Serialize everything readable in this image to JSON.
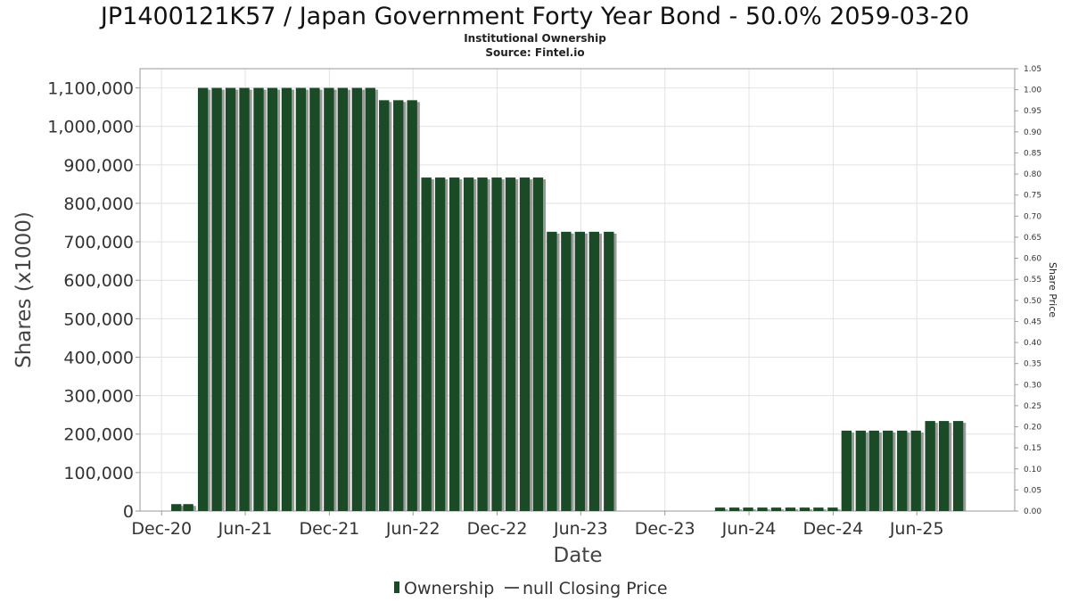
{
  "chart_data": {
    "type": "bar",
    "title": "JP1400121K57 / Japan Government Forty Year Bond - 50.0% 2059-03-20",
    "subtitle": "Institutional Ownership",
    "source": "Source: Fintel.io",
    "xlabel": "Date",
    "ylabel": "Shares (x1000)",
    "y2label": "Share Price",
    "ylim": [
      0,
      1150000
    ],
    "y2lim": [
      0,
      1.05
    ],
    "grid": true,
    "legend_position": "bottom-center",
    "colors": {
      "bar": "#1b4a26",
      "bar_shadow": "#9a9a9a",
      "line": "#555555"
    },
    "x_tick_labels": [
      "Dec-20",
      "Jun-21",
      "Dec-21",
      "Jun-22",
      "Dec-22",
      "Jun-23",
      "Dec-23",
      "Jun-24",
      "Dec-24",
      "Jun-25"
    ],
    "y_tick_labels": [
      "0",
      "100,000",
      "200,000",
      "300,000",
      "400,000",
      "500,000",
      "600,000",
      "700,000",
      "800,000",
      "900,000",
      "1,000,000",
      "1,100,000"
    ],
    "y2_tick_labels": [
      "0.00",
      "0.05",
      "0.10",
      "0.15",
      "0.20",
      "0.25",
      "0.30",
      "0.35",
      "0.40",
      "0.45",
      "0.50",
      "0.55",
      "0.60",
      "0.65",
      "0.70",
      "0.75",
      "0.80",
      "0.85",
      "0.90",
      "0.95",
      "1.00",
      "1.05"
    ],
    "x_range": [
      "2020-10-15",
      "2025-12-31"
    ],
    "x_ticks": [
      "2020-12-01",
      "2021-06-01",
      "2021-12-01",
      "2022-06-01",
      "2022-12-01",
      "2023-06-01",
      "2023-12-01",
      "2024-06-01",
      "2024-12-01",
      "2025-06-01"
    ],
    "series": [
      {
        "name": "Ownership",
        "x": [
          "2021-01-02",
          "2021-01-28",
          "2021-03-01",
          "2021-03-31",
          "2021-04-30",
          "2021-05-30",
          "2021-06-30",
          "2021-07-30",
          "2021-08-30",
          "2021-09-30",
          "2021-10-30",
          "2021-11-30",
          "2021-12-30",
          "2022-01-30",
          "2022-02-28",
          "2022-03-30",
          "2022-04-30",
          "2022-05-30",
          "2022-06-30",
          "2022-07-30",
          "2022-08-30",
          "2022-09-30",
          "2022-10-30",
          "2022-11-30",
          "2022-12-30",
          "2023-01-30",
          "2023-02-28",
          "2023-03-30",
          "2023-04-30",
          "2023-05-30",
          "2023-06-30",
          "2023-08-01",
          "2024-03-30",
          "2024-04-30",
          "2024-05-30",
          "2024-06-30",
          "2024-07-30",
          "2024-08-30",
          "2024-09-30",
          "2024-10-30",
          "2024-11-30",
          "2024-12-30",
          "2025-01-30",
          "2025-02-28",
          "2025-03-30",
          "2025-04-30",
          "2025-05-30",
          "2025-06-30",
          "2025-07-30",
          "2025-08-30"
        ],
        "values": [
          18000,
          18000,
          1100000,
          1100000,
          1100000,
          1100000,
          1100000,
          1100000,
          1100000,
          1100000,
          1100000,
          1100000,
          1100000,
          1100000,
          1100000,
          1068000,
          1068000,
          1068000,
          867000,
          867000,
          867000,
          867000,
          867000,
          867000,
          867000,
          867000,
          867000,
          726000,
          726000,
          726000,
          726000,
          726000,
          9000,
          9000,
          9000,
          9000,
          9000,
          9000,
          9000,
          9000,
          9000,
          209000,
          209000,
          209000,
          209000,
          209000,
          209000,
          234000,
          234000,
          234000
        ]
      },
      {
        "name": "null Closing Price",
        "values": []
      }
    ]
  }
}
